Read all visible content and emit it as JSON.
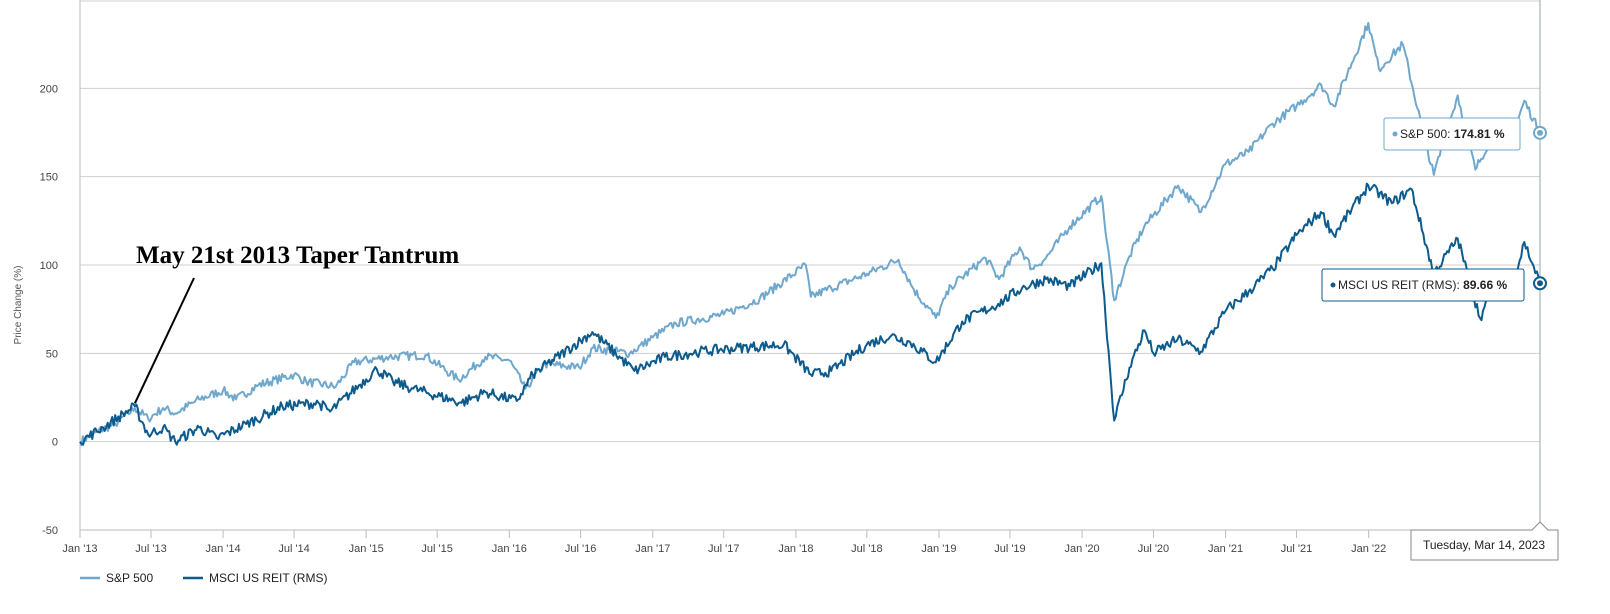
{
  "chart_data": {
    "type": "line",
    "ylabel": "Price Change (%)",
    "ylim": [
      -50,
      250
    ],
    "yticks": [
      -50,
      0,
      50,
      100,
      150,
      200
    ],
    "x_range": [
      "2013-01-01",
      "2023-03-14"
    ],
    "x_ticks": [
      {
        "date": "2013-01-01",
        "label": "Jan '13"
      },
      {
        "date": "2013-07-01",
        "label": "Jul '13"
      },
      {
        "date": "2014-01-01",
        "label": "Jan '14"
      },
      {
        "date": "2014-07-01",
        "label": "Jul '14"
      },
      {
        "date": "2015-01-01",
        "label": "Jan '15"
      },
      {
        "date": "2015-07-01",
        "label": "Jul '15"
      },
      {
        "date": "2016-01-01",
        "label": "Jan '16"
      },
      {
        "date": "2016-07-01",
        "label": "Jul '16"
      },
      {
        "date": "2017-01-01",
        "label": "Jan '17"
      },
      {
        "date": "2017-07-01",
        "label": "Jul '17"
      },
      {
        "date": "2018-01-01",
        "label": "Jan '18"
      },
      {
        "date": "2018-07-01",
        "label": "Jul '18"
      },
      {
        "date": "2019-01-01",
        "label": "Jan '19"
      },
      {
        "date": "2019-07-01",
        "label": "Jul '19"
      },
      {
        "date": "2020-01-01",
        "label": "Jan '20"
      },
      {
        "date": "2020-07-01",
        "label": "Jul '20"
      },
      {
        "date": "2021-01-01",
        "label": "Jan '21"
      },
      {
        "date": "2021-07-01",
        "label": "Jul '21"
      },
      {
        "date": "2022-01-01",
        "label": "Jan '22"
      }
    ],
    "grid": true,
    "legend_position": "bottom-left",
    "series": [
      {
        "name": "S&P 500",
        "color": "#6fa8cc",
        "points": [
          [
            "2013-01-01",
            0
          ],
          [
            "2013-02-15",
            6
          ],
          [
            "2013-04-01",
            10
          ],
          [
            "2013-05-21",
            19
          ],
          [
            "2013-06-24",
            13
          ],
          [
            "2013-08-01",
            19
          ],
          [
            "2013-09-01",
            16
          ],
          [
            "2013-11-01",
            24
          ],
          [
            "2014-01-01",
            29
          ],
          [
            "2014-02-03",
            24
          ],
          [
            "2014-04-01",
            32
          ],
          [
            "2014-07-01",
            38
          ],
          [
            "2014-08-01",
            34
          ],
          [
            "2014-10-15",
            31
          ],
          [
            "2014-12-01",
            45
          ],
          [
            "2015-03-01",
            48
          ],
          [
            "2015-06-01",
            49
          ],
          [
            "2015-08-25",
            35
          ],
          [
            "2015-11-01",
            48
          ],
          [
            "2016-01-01",
            46
          ],
          [
            "2016-02-11",
            30
          ],
          [
            "2016-04-01",
            44
          ],
          [
            "2016-06-27",
            42
          ],
          [
            "2016-08-01",
            53
          ],
          [
            "2016-11-03",
            50
          ],
          [
            "2017-01-01",
            59
          ],
          [
            "2017-03-01",
            67
          ],
          [
            "2017-07-01",
            72
          ],
          [
            "2017-10-01",
            81
          ],
          [
            "2018-01-26",
            100
          ],
          [
            "2018-02-08",
            82
          ],
          [
            "2018-04-01",
            87
          ],
          [
            "2018-07-01",
            95
          ],
          [
            "2018-09-20",
            103
          ],
          [
            "2018-10-29",
            86
          ],
          [
            "2018-12-24",
            70
          ],
          [
            "2019-02-01",
            88
          ],
          [
            "2019-04-30",
            104
          ],
          [
            "2019-06-03",
            92
          ],
          [
            "2019-07-26",
            110
          ],
          [
            "2019-08-26",
            98
          ],
          [
            "2019-10-01",
            104
          ],
          [
            "2019-12-01",
            122
          ],
          [
            "2020-02-19",
            139
          ],
          [
            "2020-03-23",
            80
          ],
          [
            "2020-05-01",
            105
          ],
          [
            "2020-06-08",
            122
          ],
          [
            "2020-09-02",
            145
          ],
          [
            "2020-10-30",
            130
          ],
          [
            "2020-12-31",
            157
          ],
          [
            "2021-03-01",
            164
          ],
          [
            "2021-05-01",
            180
          ],
          [
            "2021-07-01",
            190
          ],
          [
            "2021-09-02",
            202
          ],
          [
            "2021-10-04",
            190
          ],
          [
            "2021-12-31",
            237
          ],
          [
            "2022-01-27",
            211
          ],
          [
            "2022-03-29",
            225
          ],
          [
            "2022-05-20",
            175
          ],
          [
            "2022-06-16",
            151
          ],
          [
            "2022-08-16",
            196
          ],
          [
            "2022-09-30",
            154
          ],
          [
            "2022-11-30",
            181
          ],
          [
            "2022-12-28",
            168
          ],
          [
            "2023-02-02",
            193
          ],
          [
            "2023-03-14",
            174.81
          ]
        ]
      },
      {
        "name": "MSCI US REIT (RMS)",
        "color": "#0d5b8c",
        "points": [
          [
            "2013-01-01",
            0
          ],
          [
            "2013-03-01",
            8
          ],
          [
            "2013-05-21",
            20
          ],
          [
            "2013-06-24",
            4
          ],
          [
            "2013-08-01",
            8
          ],
          [
            "2013-09-01",
            0
          ],
          [
            "2013-11-01",
            8
          ],
          [
            "2013-12-16",
            2
          ],
          [
            "2014-03-01",
            10
          ],
          [
            "2014-06-01",
            20
          ],
          [
            "2014-09-01",
            22
          ],
          [
            "2014-10-01",
            17
          ],
          [
            "2015-01-28",
            41
          ],
          [
            "2015-03-10",
            34
          ],
          [
            "2015-05-01",
            30
          ],
          [
            "2015-09-01",
            22
          ],
          [
            "2015-11-01",
            28
          ],
          [
            "2016-01-20",
            23
          ],
          [
            "2016-03-01",
            38
          ],
          [
            "2016-07-31",
            62
          ],
          [
            "2016-11-15",
            40
          ],
          [
            "2017-02-01",
            48
          ],
          [
            "2017-05-01",
            51
          ],
          [
            "2017-08-01",
            53
          ],
          [
            "2017-12-01",
            55
          ],
          [
            "2018-02-08",
            38
          ],
          [
            "2018-04-01",
            40
          ],
          [
            "2018-07-01",
            55
          ],
          [
            "2018-09-01",
            60
          ],
          [
            "2018-10-20",
            56
          ],
          [
            "2018-12-24",
            45
          ],
          [
            "2019-03-01",
            68
          ],
          [
            "2019-06-01",
            78
          ],
          [
            "2019-08-01",
            87
          ],
          [
            "2019-10-01",
            92
          ],
          [
            "2019-12-01",
            88
          ],
          [
            "2020-02-19",
            101
          ],
          [
            "2020-03-23",
            12
          ],
          [
            "2020-05-01",
            42
          ],
          [
            "2020-06-08",
            63
          ],
          [
            "2020-07-01",
            50
          ],
          [
            "2020-09-01",
            58
          ],
          [
            "2020-10-30",
            51
          ],
          [
            "2021-01-01",
            74
          ],
          [
            "2021-03-01",
            85
          ],
          [
            "2021-05-01",
            98
          ],
          [
            "2021-07-01",
            117
          ],
          [
            "2021-09-01",
            130
          ],
          [
            "2021-10-04",
            117
          ],
          [
            "2021-12-31",
            145
          ],
          [
            "2022-03-01",
            135
          ],
          [
            "2022-04-20",
            143
          ],
          [
            "2022-06-16",
            95
          ],
          [
            "2022-08-16",
            115
          ],
          [
            "2022-10-12",
            70
          ],
          [
            "2022-12-01",
            93
          ],
          [
            "2022-12-28",
            82
          ],
          [
            "2023-02-02",
            113
          ],
          [
            "2023-03-14",
            89.66
          ]
        ]
      }
    ],
    "annotations": [
      {
        "text": "May 21st 2013 Taper Tantrum",
        "arrow_to": [
          "2013-05-21",
          20
        ]
      }
    ],
    "tooltips": [
      {
        "series": "S&P 500",
        "label": "S&P 500",
        "separator": ": ",
        "value": "174.81 %",
        "date": "2023-03-14",
        "y": 174.81
      },
      {
        "series": "MSCI US REIT (RMS)",
        "label": "MSCI US REIT (RMS)",
        "separator": ": ",
        "value": "89.66 %",
        "date": "2023-03-14",
        "y": 89.66
      }
    ],
    "crosshair_date_label": "Tuesday, Mar 14, 2023"
  }
}
